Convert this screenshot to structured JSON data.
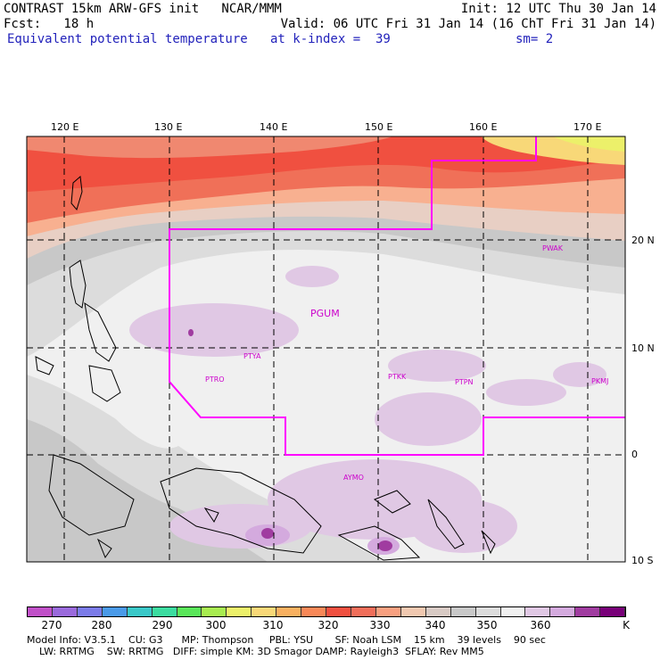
{
  "header": {
    "title": "CONTRAST 15km ARW-GFS init   NCAR/MMM",
    "fcst": "Fcst:   18 h",
    "init": "Init: 12 UTC Thu 30 Jan 14",
    "valid": "Valid: 06 UTC Fri 31 Jan 14 (16 ChT Fri 31 Jan 14)",
    "field": "Equivalent potential temperature",
    "level": "at k-index =  39",
    "smooth": "sm= 2"
  },
  "map": {
    "lon_labels": [
      "120 E",
      "130 E",
      "140 E",
      "150 E",
      "160 E",
      "170 E"
    ],
    "lat_labels": [
      "20 N",
      "10 N",
      "0",
      "10 S"
    ],
    "stations": [
      "PGUM",
      "PTYA",
      "PTRO",
      "PTKK",
      "PTPN",
      "PKMJ",
      "PWAK",
      "AYMO"
    ],
    "boundary_color": "#ff00ff"
  },
  "colorbar": {
    "labels": [
      "270",
      "280",
      "290",
      "300",
      "310",
      "320",
      "330",
      "340",
      "350",
      "360",
      "K"
    ],
    "colors": [
      "#c050c8",
      "#9a6adc",
      "#7b7be8",
      "#4a9ae8",
      "#3ac8c8",
      "#3cdca0",
      "#5ae65a",
      "#a8ec50",
      "#ecf06a",
      "#f8d878",
      "#f8b060",
      "#f88858",
      "#f05040",
      "#f06e5a",
      "#f8a080",
      "#f0c8b0",
      "#d8cac4",
      "#c8c8c8",
      "#dcdcdc",
      "#f0f0f0",
      "#e0c8e4",
      "#d4aade",
      "#a03ca0",
      "#780078"
    ]
  },
  "footer": {
    "line1": "Model Info: V3.5.1    CU: G3      MP: Thompson     PBL: YSU       SF: Noah LSM    15 km    39 levels    90 sec",
    "line2": "LW: RRTMG    SW: RRTMG   DIFF: simple KM: 3D Smagor DAMP: Rayleigh3  SFLAY: Rev MM5"
  }
}
